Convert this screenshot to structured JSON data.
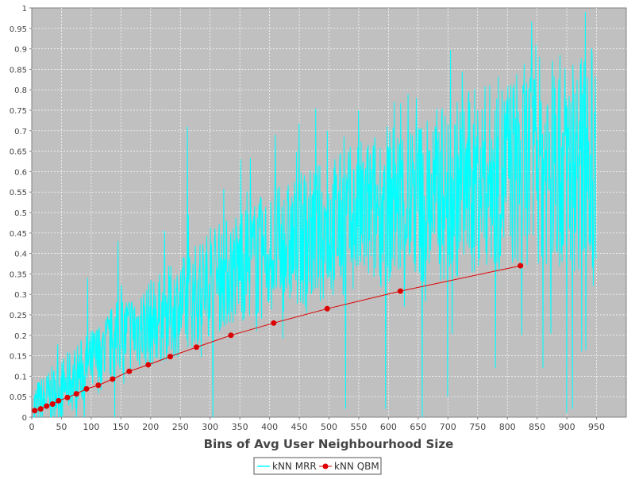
{
  "chart_data": {
    "type": "line",
    "title": "",
    "xlabel": "Bins of Avg User Neighbourhood Size",
    "ylabel": "",
    "xlim": [
      0,
      1000
    ],
    "ylim": [
      0,
      1
    ],
    "x_ticks": [
      "0",
      "50",
      "100",
      "150",
      "200",
      "250",
      "300",
      "350",
      "400",
      "450",
      "500",
      "550",
      "600",
      "650",
      "700",
      "750",
      "800",
      "850",
      "900",
      "950"
    ],
    "y_ticks": [
      "0",
      "0.05",
      "0.1",
      "0.15",
      "0.2",
      "0.25",
      "0.3",
      "0.35",
      "0.4",
      "0.45",
      "0.5",
      "0.55",
      "0.6",
      "0.65",
      "0.7",
      "0.75",
      "0.8",
      "0.85",
      "0.9",
      "0.95",
      "1"
    ],
    "grid": true,
    "legend_position": "bottom-center",
    "colors": {
      "plot_background": "#c0c0c0",
      "grid": "#ffffff",
      "mrr": "#00ffff",
      "qbm": "#dd0000"
    },
    "series": [
      {
        "name": "kNN MRR",
        "noisy": true,
        "trend": [
          [
            3,
            0.02
          ],
          [
            50,
            0.07
          ],
          [
            100,
            0.13
          ],
          [
            150,
            0.2
          ],
          [
            200,
            0.23
          ],
          [
            250,
            0.27
          ],
          [
            300,
            0.33
          ],
          [
            350,
            0.37
          ],
          [
            400,
            0.4
          ],
          [
            450,
            0.43
          ],
          [
            500,
            0.46
          ],
          [
            550,
            0.49
          ],
          [
            600,
            0.52
          ],
          [
            650,
            0.53
          ],
          [
            700,
            0.55
          ],
          [
            750,
            0.58
          ],
          [
            800,
            0.6
          ],
          [
            850,
            0.63
          ],
          [
            900,
            0.62
          ],
          [
            950,
            0.64
          ]
        ],
        "peaks": [
          [
            94,
            0.34
          ],
          [
            145,
            0.43
          ],
          [
            262,
            0.71
          ],
          [
            352,
            0.63
          ],
          [
            410,
            0.69
          ],
          [
            497,
            0.7
          ],
          [
            550,
            0.75
          ],
          [
            610,
            0.77
          ],
          [
            647,
            0.78
          ],
          [
            690,
            0.74
          ],
          [
            803,
            0.78
          ],
          [
            848,
            0.91
          ],
          [
            935,
            0.83
          ],
          [
            950,
            0.85
          ]
        ],
        "dips": [
          [
            140,
            0.0
          ],
          [
            305,
            0.0
          ],
          [
            528,
            0.02
          ],
          [
            595,
            0.02
          ],
          [
            657,
            0.0
          ],
          [
            700,
            0.05
          ],
          [
            780,
            0.12
          ],
          [
            824,
            0.2
          ],
          [
            860,
            0.12
          ],
          [
            900,
            0.01
          ],
          [
            910,
            0.02
          ],
          [
            945,
            0.32
          ]
        ]
      },
      {
        "name": "kNN QBM",
        "x": [
          5,
          15,
          25,
          35,
          45,
          60,
          75,
          92,
          112,
          136,
          164,
          196,
          233,
          277,
          335,
          407,
          497,
          620,
          822
        ],
        "y": [
          0.016,
          0.02,
          0.027,
          0.032,
          0.04,
          0.048,
          0.057,
          0.069,
          0.078,
          0.093,
          0.112,
          0.128,
          0.148,
          0.171,
          0.2,
          0.23,
          0.265,
          0.308,
          0.37
        ]
      }
    ]
  }
}
